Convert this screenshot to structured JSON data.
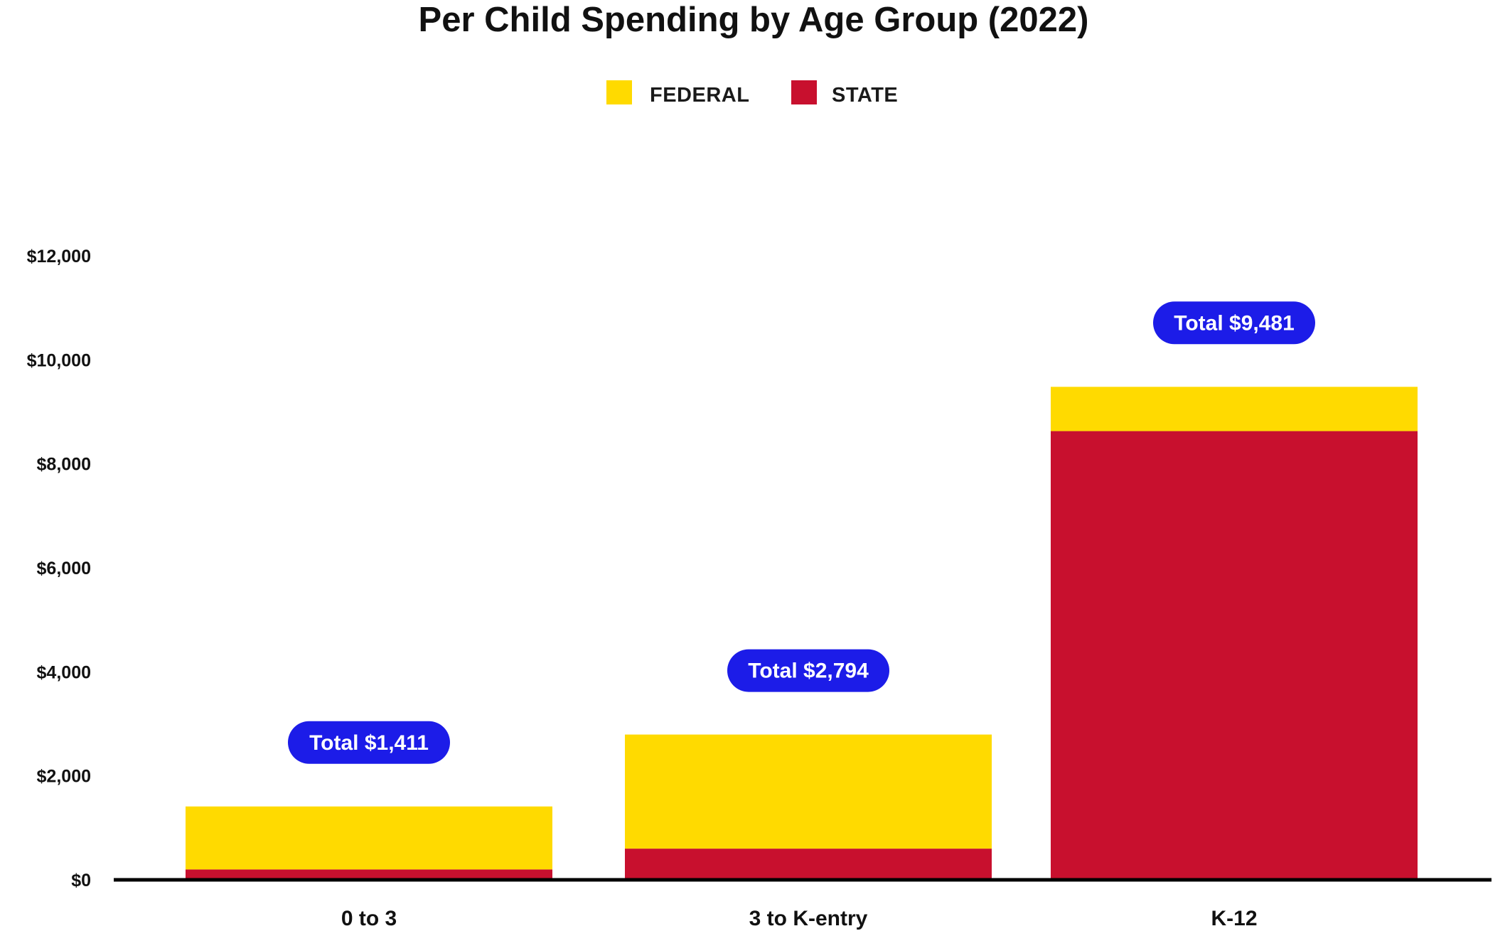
{
  "chart_data": {
    "type": "bar",
    "stacked": true,
    "title": "Per Child Spending by Age Group (2022)",
    "xlabel": "",
    "ylabel": "",
    "categories": [
      "0 to 3",
      "3 to K-entry",
      "K-12"
    ],
    "series": [
      {
        "name": "STATE",
        "color": "#C8102E",
        "values": [
          200,
          600,
          8630
        ]
      },
      {
        "name": "FEDERAL",
        "color": "#FFDA00",
        "values": [
          1211,
          2194,
          851
        ]
      }
    ],
    "totals": [
      "Total $1,411",
      "Total $2,794",
      "Total $9,481"
    ],
    "total_badge_color": "#1C1CE8",
    "ylim": [
      0,
      12000
    ],
    "y_ticks": [
      0,
      2000,
      4000,
      6000,
      8000,
      10000,
      12000
    ],
    "y_tick_labels": [
      "$0",
      "$2,000",
      "$4,000",
      "$6,000",
      "$8,000",
      "$10,000",
      "$12,000"
    ],
    "grid": false,
    "legend": {
      "position": "top-center",
      "order": [
        "FEDERAL",
        "STATE"
      ]
    }
  }
}
